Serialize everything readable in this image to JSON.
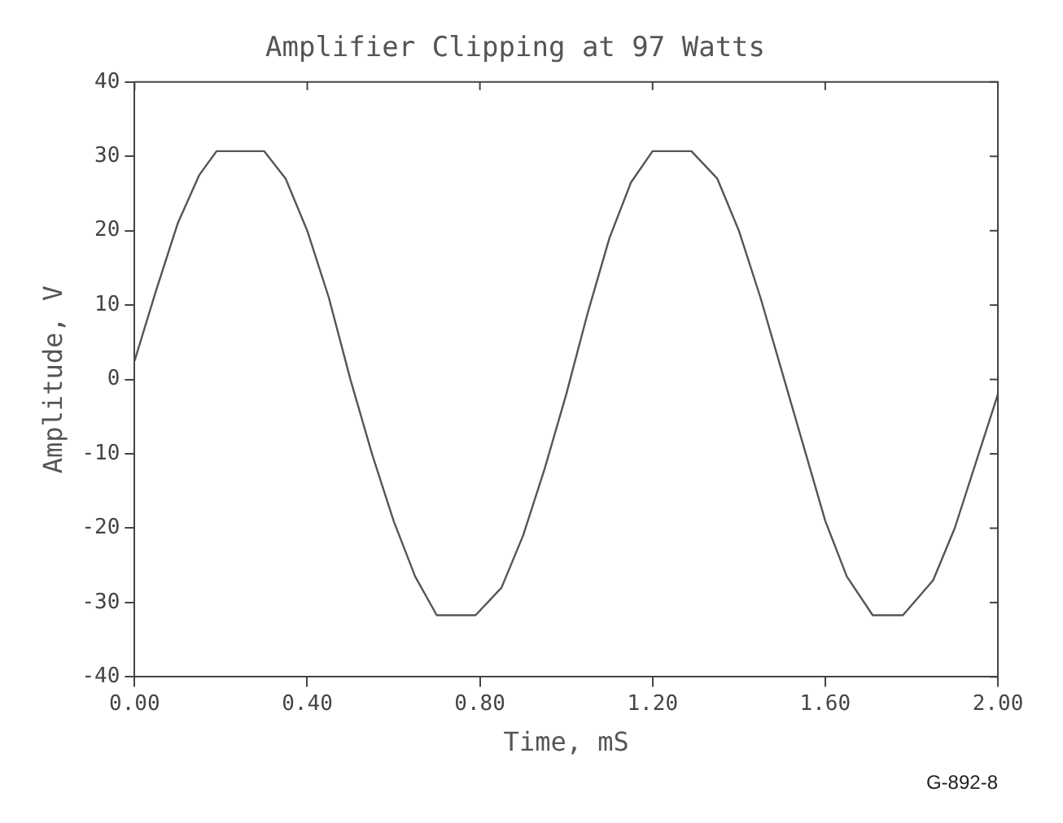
{
  "chart_data": {
    "type": "line",
    "title": "Amplifier Clipping at 97 Watts",
    "xlabel": "Time, mS",
    "ylabel": "Amplitude, V",
    "annotations": [
      "G-892-8"
    ],
    "xlim": [
      0,
      2
    ],
    "xticks": [
      {
        "value": 0,
        "label": "0.00"
      },
      {
        "value": 0.4,
        "label": "0.40"
      },
      {
        "value": 0.8,
        "label": "0.80"
      },
      {
        "value": 1.2,
        "label": "1.20"
      },
      {
        "value": 1.6,
        "label": "1.60"
      },
      {
        "value": 2,
        "label": "2.00"
      }
    ],
    "ylim": [
      -40,
      40
    ],
    "yticks": [
      -40,
      -30,
      -20,
      -10,
      0,
      10,
      20,
      30,
      40
    ],
    "grid": false,
    "legend": false,
    "marker": "none",
    "line_style": "solid",
    "series": [
      {
        "color": "#555555",
        "x": [
          0,
          0.05,
          0.1,
          0.15,
          0.19,
          0.3,
          0.35,
          0.4,
          0.45,
          0.5,
          0.55,
          0.6,
          0.65,
          0.7,
          0.79,
          0.85,
          0.9,
          0.95,
          1,
          1.05,
          1.1,
          1.15,
          1.2,
          1.29,
          1.35,
          1.4,
          1.45,
          1.5,
          1.55,
          1.6,
          1.65,
          1.71,
          1.78,
          1.85,
          1.9,
          1.95,
          2
        ],
        "values": [
          2.5,
          12,
          21,
          27.5,
          30.7,
          30.7,
          27,
          20,
          11,
          0,
          -10,
          -19,
          -26.5,
          -31.7,
          -31.7,
          -28,
          -21,
          -12,
          -2,
          9,
          19,
          26.5,
          30.7,
          30.7,
          27,
          20,
          11,
          1,
          -9,
          -19,
          -26.5,
          -31.7,
          -31.7,
          -27,
          -20,
          -11,
          -2
        ]
      }
    ]
  }
}
